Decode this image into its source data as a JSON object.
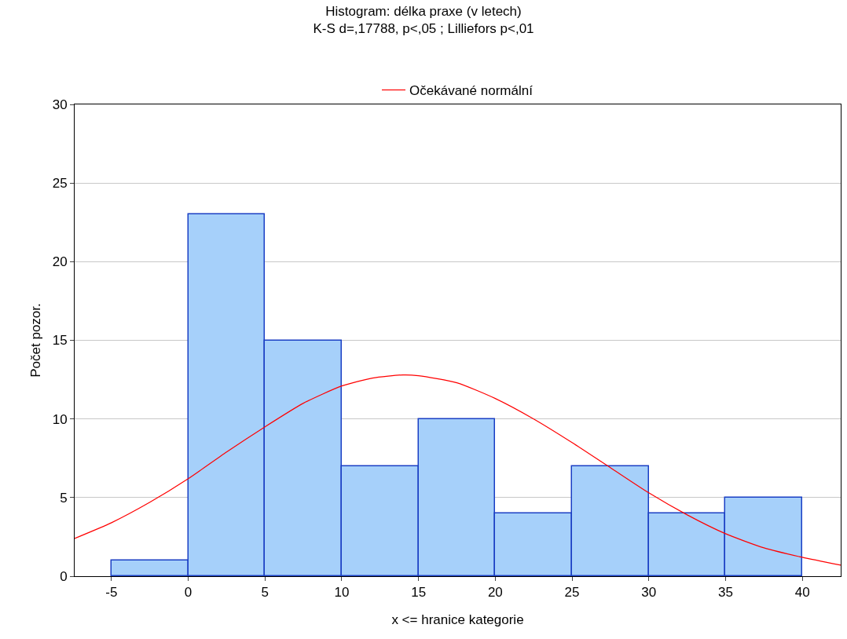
{
  "chart_data": {
    "type": "histogram",
    "title": "Histogram: délka praxe (v letech)",
    "subtitle": "K-S d=,17788, p<,05 ; Lilliefors p<,01",
    "xlabel": "x <= hranice kategorie",
    "ylabel": "Počet pozor.",
    "bins": [
      -5,
      0,
      5,
      10,
      15,
      20,
      25,
      30,
      35,
      40
    ],
    "values": [
      1,
      23,
      15,
      7,
      10,
      4,
      7,
      4,
      5
    ],
    "color": "#a6d0fa",
    "series": [
      {
        "name": "Očekávané normální",
        "type": "line",
        "color": "#ff0000",
        "x": [
          -7.4,
          -5,
          -2.5,
          0,
          2.5,
          5,
          7.5,
          10,
          12,
          14,
          15,
          17.5,
          20,
          22.5,
          25,
          27.5,
          30,
          32.5,
          35,
          37.5,
          40,
          42.5
        ],
        "values": [
          2.4,
          3.4,
          4.7,
          6.2,
          7.9,
          9.5,
          11.0,
          12.1,
          12.6,
          12.8,
          12.75,
          12.3,
          11.3,
          10.0,
          8.5,
          6.9,
          5.3,
          3.9,
          2.7,
          1.8,
          1.2,
          0.7
        ]
      }
    ],
    "xlim": [
      -7.4,
      42.5
    ],
    "xticks": [
      -5,
      0,
      5,
      10,
      15,
      20,
      25,
      30,
      35,
      40
    ],
    "ylim": [
      0,
      30
    ],
    "yticks": [
      0,
      5,
      10,
      15,
      20,
      25,
      30
    ],
    "grid": "y",
    "legend": "top",
    "marker": "none",
    "line_style": "solid"
  }
}
